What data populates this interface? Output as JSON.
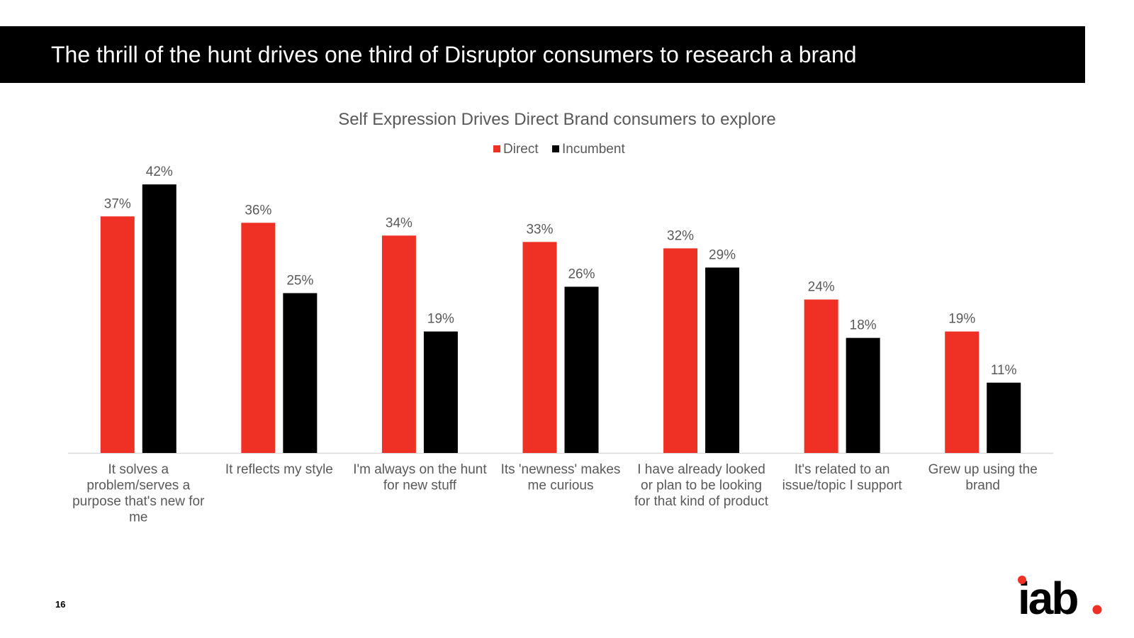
{
  "slide": {
    "title": "The thrill of the hunt drives one third of Disruptor consumers to research a brand",
    "page_number": "16",
    "logo_text": "iab"
  },
  "colors": {
    "direct": "#EE3124",
    "incumbent": "#000000",
    "axis": "#D9D9D9",
    "text": "#595959",
    "title_bar": "#000000",
    "logo": "#000000",
    "logo_dot": "#EE3124"
  },
  "chart_data": {
    "type": "bar",
    "title": "Self Expression Drives Direct Brand consumers to explore",
    "legend_position": "top",
    "xlabel": "",
    "ylabel": "",
    "ylim": [
      0,
      45
    ],
    "grid": false,
    "categories": [
      [
        "It solves a",
        "problem/serves a",
        "purpose that's new for",
        "me"
      ],
      [
        "It reflects my style"
      ],
      [
        "I'm always on the hunt",
        "for new stuff"
      ],
      [
        "Its 'newness' makes",
        "me curious"
      ],
      [
        "I have already looked",
        "or plan to be looking",
        "for that kind of product"
      ],
      [
        "It's related to an",
        "issue/topic I support"
      ],
      [
        "Grew up using the",
        "brand"
      ]
    ],
    "series": [
      {
        "name": "Direct",
        "color": "#EE3124",
        "values": [
          37,
          36,
          34,
          33,
          32,
          24,
          19
        ],
        "labels": [
          "37%",
          "36%",
          "34%",
          "33%",
          "32%",
          "24%",
          "19%"
        ]
      },
      {
        "name": "Incumbent",
        "color": "#000000",
        "values": [
          42,
          25,
          19,
          26,
          29,
          18,
          11
        ],
        "labels": [
          "42%",
          "25%",
          "19%",
          "26%",
          "29%",
          "18%",
          "11%"
        ]
      }
    ]
  }
}
